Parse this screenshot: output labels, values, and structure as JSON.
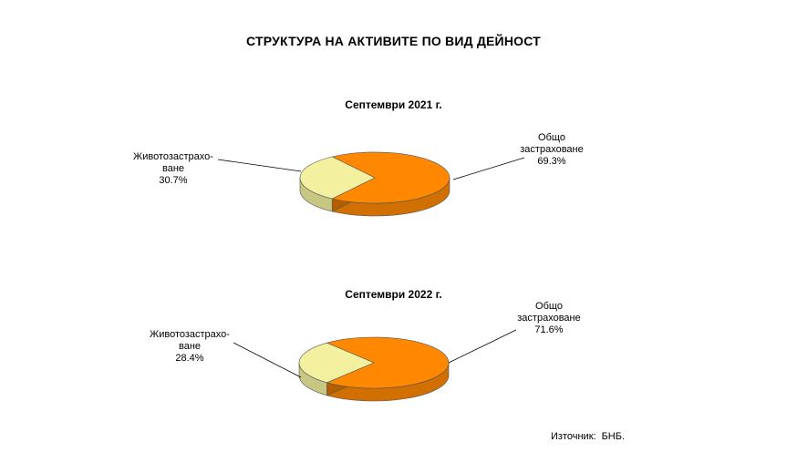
{
  "title": "СТРУКТУРА НА АКТИВИТЕ ПО ВИД ДЕЙНОСТ",
  "source": {
    "label": "Източник:",
    "value": "БНБ."
  },
  "colors": {
    "general": "#ff8800",
    "life": "#f3f1a0"
  },
  "chart_data": [
    {
      "type": "pie",
      "title": "Септември 2021 г.",
      "slices": [
        {
          "name": "Общо застраховане",
          "name_lines": [
            "Общо",
            "застраховане"
          ],
          "value": 69.3,
          "label": "69.3%"
        },
        {
          "name": "Животозастраховане",
          "name_lines": [
            "Животозастрахо-",
            "ване"
          ],
          "value": 30.7,
          "label": "30.7%"
        }
      ]
    },
    {
      "type": "pie",
      "title": "Септември 2022 г.",
      "slices": [
        {
          "name": "Общо застраховане",
          "name_lines": [
            "Общо",
            "застраховане"
          ],
          "value": 71.6,
          "label": "71.6%"
        },
        {
          "name": "Животозастраховане",
          "name_lines": [
            "Животозастрахо-",
            "ване"
          ],
          "value": 28.4,
          "label": "28.4%"
        }
      ]
    }
  ]
}
